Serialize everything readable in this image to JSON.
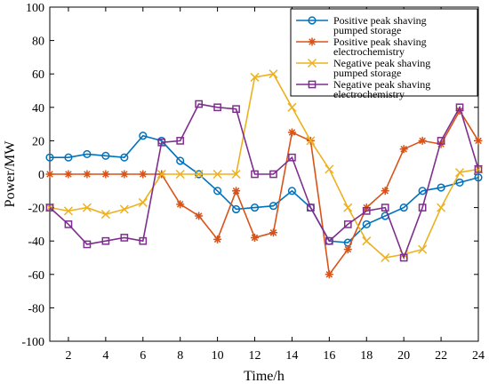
{
  "chart_data": {
    "type": "line",
    "title": "",
    "xlabel": "Time/h",
    "ylabel": "Power/MW",
    "xlim": [
      1,
      24
    ],
    "ylim": [
      -100,
      100
    ],
    "xticks": [
      2,
      4,
      6,
      8,
      10,
      12,
      14,
      16,
      18,
      20,
      22,
      24
    ],
    "yticks": [
      -100,
      -80,
      -60,
      -40,
      -20,
      0,
      20,
      40,
      60,
      80,
      100
    ],
    "x": [
      1,
      2,
      3,
      4,
      5,
      6,
      7,
      8,
      9,
      10,
      11,
      12,
      13,
      14,
      15,
      16,
      17,
      18,
      19,
      20,
      21,
      22,
      23,
      24
    ],
    "grid": false,
    "legend_position": "top-right",
    "series": [
      {
        "name": "Positive peak shaving pumped storage",
        "legend_lines": [
          "Positive peak shaving",
          "pumped storage"
        ],
        "color": "#0072BD",
        "marker": "circle",
        "values": [
          10,
          10,
          12,
          11,
          10,
          23,
          20,
          8,
          0,
          -10,
          -21,
          -20,
          -19,
          -10,
          -20,
          -40,
          -41,
          -30,
          -25,
          -20,
          -10,
          -8,
          -5,
          -2
        ]
      },
      {
        "name": "Positive peak shaving electrochemistry",
        "legend_lines": [
          "Positive peak shaving",
          "electrochemistry"
        ],
        "color": "#D95319",
        "marker": "asterisk",
        "values": [
          0,
          0,
          0,
          0,
          0,
          0,
          0,
          -18,
          -25,
          -39,
          -10,
          -38,
          -35,
          25,
          20,
          -60,
          -45,
          -20,
          -10,
          15,
          20,
          18,
          38,
          20
        ]
      },
      {
        "name": "Negative peak shaving pumped storage",
        "legend_lines": [
          "Negative peak shaving",
          "pumped storage"
        ],
        "color": "#EDB120",
        "marker": "x",
        "values": [
          -20,
          -22,
          -20,
          -24,
          -21,
          -17,
          0,
          0,
          0,
          0,
          0,
          58,
          60,
          40,
          20,
          3,
          -20,
          -40,
          -50,
          -48,
          -45,
          -20,
          1,
          3
        ]
      },
      {
        "name": "Negative peak shaving electrochemistry",
        "legend_lines": [
          "Negative peak shaving",
          "electrochemistry"
        ],
        "color": "#7E2F8E",
        "marker": "square",
        "values": [
          -20,
          -30,
          -42,
          -40,
          -38,
          -40,
          19,
          20,
          42,
          40,
          39,
          0,
          0,
          10,
          -20,
          -40,
          -30,
          -22,
          -20,
          -50,
          -20,
          20,
          40,
          3
        ]
      }
    ]
  }
}
